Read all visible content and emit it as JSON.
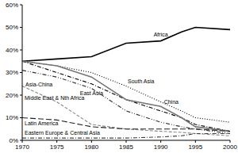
{
  "chart_data": {
    "type": "line",
    "x": [
      1970,
      1975,
      1980,
      1985,
      1990,
      1993,
      1995,
      2000
    ],
    "xlim": [
      1970,
      2000
    ],
    "xticks": [
      1970,
      1975,
      1980,
      1985,
      1990,
      1995,
      2000
    ],
    "ylim": [
      0,
      60
    ],
    "yticks": [
      {
        "value": 0,
        "label": "0%"
      },
      {
        "value": 10,
        "label": "10%"
      },
      {
        "value": 20,
        "label": "20%"
      },
      {
        "value": 30,
        "label": "30%"
      },
      {
        "value": 40,
        "label": "40%"
      },
      {
        "value": 50,
        "label": "50%"
      },
      {
        "value": 60,
        "label": "60%"
      }
    ],
    "grid": false,
    "series": [
      {
        "name": "Africa",
        "color": "#000000",
        "line_style": "solid",
        "values": [
          35,
          36,
          37,
          43,
          44,
          48,
          50,
          49
        ]
      },
      {
        "name": "South Asia",
        "color": "#000000",
        "line_style": "dotted",
        "values": [
          35,
          33,
          30,
          24,
          17,
          13,
          10,
          8
        ]
      },
      {
        "name": "East Asia",
        "color": "#000000",
        "line_style": "dashdot",
        "values": [
          35,
          30,
          25,
          18,
          13,
          10,
          7,
          4
        ]
      },
      {
        "name": "China",
        "color": "#777777",
        "line_style": "solid",
        "values": [
          35,
          33,
          28,
          18,
          15,
          10,
          6,
          4
        ]
      },
      {
        "name": "Asia-China",
        "color": "#333333",
        "line_style": "dashdotdot",
        "values": [
          31,
          28,
          23,
          13,
          8,
          6,
          5,
          3
        ]
      },
      {
        "name": "Middle East & Nth Africa",
        "color": "#888888",
        "line_style": "dashed",
        "values": [
          24,
          17,
          7,
          5,
          4,
          3.5,
          3,
          2
        ]
      },
      {
        "name": "Latin America",
        "color": "#222222",
        "line_style": "longdash",
        "values": [
          10,
          9,
          6,
          5,
          5,
          5,
          5,
          4
        ]
      },
      {
        "name": "Eastern Europe & Central Asia",
        "color": "#444444",
        "line_style": "dashdot",
        "values": [
          1,
          1,
          1,
          1,
          1.5,
          2,
          3,
          3
        ]
      }
    ]
  }
}
